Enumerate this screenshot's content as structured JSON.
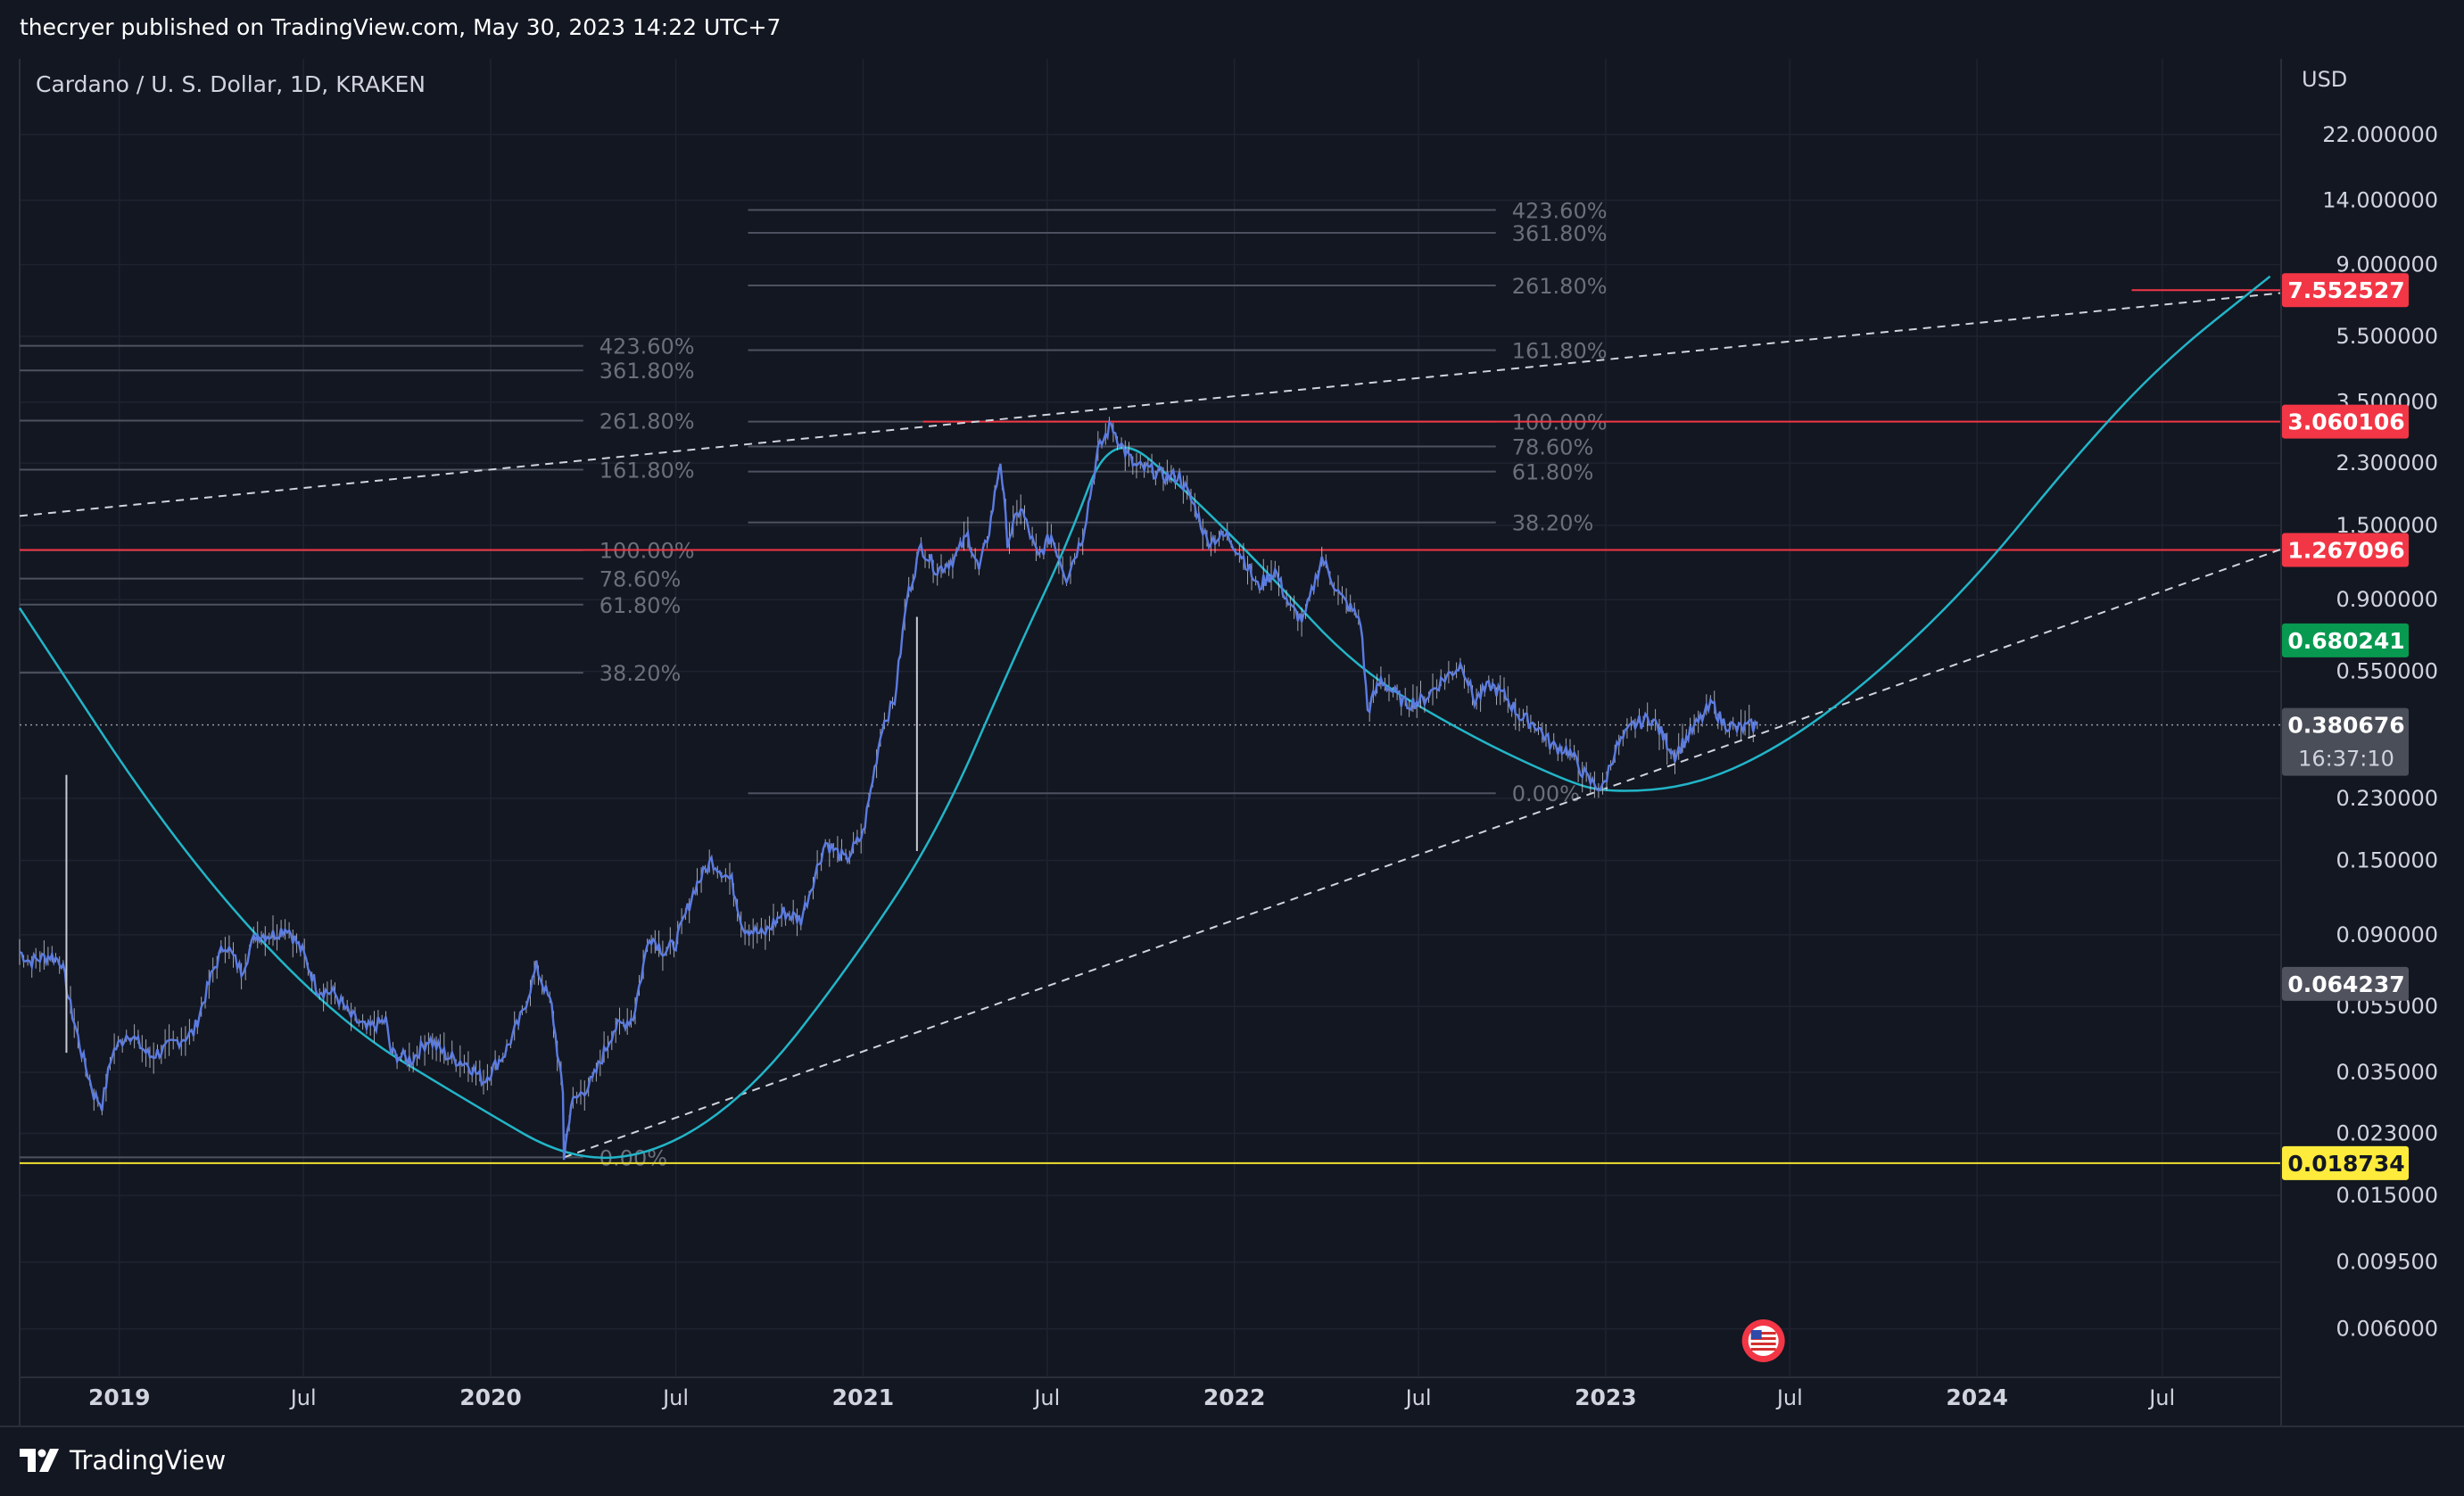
{
  "header": {
    "publisher_line": "thecryer published on TradingView.com, May 30, 2023 14:22 UTC+7"
  },
  "footer": {
    "brand": "TradingView"
  },
  "chart_data": {
    "type": "line",
    "title": "Cardano / U. S. Dollar, 1D, KRAKEN",
    "currency": "USD",
    "scale": "log",
    "ylim": [
      0.0043,
      37.0
    ],
    "y_ticks": [
      22.0,
      14.0,
      9.0,
      5.5,
      3.5,
      2.3,
      1.5,
      0.9,
      0.55,
      0.23,
      0.15,
      0.09,
      0.055,
      0.035,
      0.023,
      0.015,
      0.0095,
      0.006
    ],
    "y_tick_labels": [
      "22.000000",
      "14.000000",
      "9.000000",
      "5.500000",
      "3.500000",
      "2.300000",
      "1.500000",
      "0.900000",
      "0.550000",
      "0.230000",
      "0.150000",
      "0.090000",
      "0.055000",
      "0.035000",
      "0.023000",
      "0.015000",
      "0.009500",
      "0.006000"
    ],
    "x_range": [
      "2018-09-25",
      "2024-10-25"
    ],
    "x_ticks": [
      {
        "date": "2019-01-01",
        "label": "2019",
        "bold": true
      },
      {
        "date": "2019-07-01",
        "label": "Jul",
        "bold": false
      },
      {
        "date": "2020-01-01",
        "label": "2020",
        "bold": true
      },
      {
        "date": "2020-07-01",
        "label": "Jul",
        "bold": false
      },
      {
        "date": "2021-01-01",
        "label": "2021",
        "bold": true
      },
      {
        "date": "2021-07-01",
        "label": "Jul",
        "bold": false
      },
      {
        "date": "2022-01-01",
        "label": "2022",
        "bold": true
      },
      {
        "date": "2022-07-01",
        "label": "Jul",
        "bold": false
      },
      {
        "date": "2023-01-01",
        "label": "2023",
        "bold": true
      },
      {
        "date": "2023-07-01",
        "label": "Jul",
        "bold": false
      },
      {
        "date": "2024-01-01",
        "label": "2024",
        "bold": true
      },
      {
        "date": "2024-07-01",
        "label": "Jul",
        "bold": false
      }
    ],
    "price_series": {
      "name": "ADAUSD",
      "color": "#5b7be0",
      "points": [
        [
          "2018-09-25",
          0.08
        ],
        [
          "2018-10-05",
          0.075
        ],
        [
          "2018-10-25",
          0.078
        ],
        [
          "2018-11-05",
          0.075
        ],
        [
          "2018-11-14",
          0.055
        ],
        [
          "2018-11-25",
          0.04
        ],
        [
          "2018-12-07",
          0.03
        ],
        [
          "2018-12-15",
          0.028
        ],
        [
          "2018-12-25",
          0.04
        ],
        [
          "2019-01-10",
          0.046
        ],
        [
          "2019-01-31",
          0.039
        ],
        [
          "2019-02-15",
          0.041
        ],
        [
          "2019-02-25",
          0.043
        ],
        [
          "2019-03-15",
          0.046
        ],
        [
          "2019-04-03",
          0.07
        ],
        [
          "2019-04-15",
          0.085
        ],
        [
          "2019-05-01",
          0.07
        ],
        [
          "2019-05-15",
          0.09
        ],
        [
          "2019-06-01",
          0.09
        ],
        [
          "2019-06-15",
          0.095
        ],
        [
          "2019-06-30",
          0.08
        ],
        [
          "2019-07-15",
          0.062
        ],
        [
          "2019-08-01",
          0.06
        ],
        [
          "2019-08-15",
          0.052
        ],
        [
          "2019-09-01",
          0.047
        ],
        [
          "2019-09-20",
          0.05
        ],
        [
          "2019-09-25",
          0.04
        ],
        [
          "2019-10-15",
          0.038
        ],
        [
          "2019-11-01",
          0.044
        ],
        [
          "2019-11-20",
          0.039
        ],
        [
          "2019-12-10",
          0.037
        ],
        [
          "2019-12-25",
          0.033
        ],
        [
          "2020-01-15",
          0.04
        ],
        [
          "2020-02-01",
          0.052
        ],
        [
          "2020-02-15",
          0.072
        ],
        [
          "2020-03-01",
          0.055
        ],
        [
          "2020-03-12",
          0.03
        ],
        [
          "2020-03-13",
          0.0195
        ],
        [
          "2020-03-20",
          0.028
        ],
        [
          "2020-04-10",
          0.033
        ],
        [
          "2020-05-01",
          0.047
        ],
        [
          "2020-05-20",
          0.051
        ],
        [
          "2020-06-05",
          0.09
        ],
        [
          "2020-06-20",
          0.08
        ],
        [
          "2020-07-01",
          0.085
        ],
        [
          "2020-07-20",
          0.125
        ],
        [
          "2020-08-05",
          0.15
        ],
        [
          "2020-08-25",
          0.13
        ],
        [
          "2020-09-05",
          0.095
        ],
        [
          "2020-09-25",
          0.09
        ],
        [
          "2020-10-15",
          0.105
        ],
        [
          "2020-11-01",
          0.1
        ],
        [
          "2020-11-25",
          0.17
        ],
        [
          "2020-12-15",
          0.15
        ],
        [
          "2021-01-01",
          0.18
        ],
        [
          "2021-01-20",
          0.38
        ],
        [
          "2021-02-01",
          0.45
        ],
        [
          "2021-02-13",
          0.9
        ],
        [
          "2021-02-27",
          1.3
        ],
        [
          "2021-03-15",
          1.1
        ],
        [
          "2021-04-01",
          1.2
        ],
        [
          "2021-04-14",
          1.4
        ],
        [
          "2021-04-25",
          1.1
        ],
        [
          "2021-05-05",
          1.45
        ],
        [
          "2021-05-16",
          2.35
        ],
        [
          "2021-05-23",
          1.35
        ],
        [
          "2021-06-05",
          1.7
        ],
        [
          "2021-06-22",
          1.2
        ],
        [
          "2021-07-05",
          1.4
        ],
        [
          "2021-07-20",
          1.05
        ],
        [
          "2021-08-05",
          1.4
        ],
        [
          "2021-08-20",
          2.5
        ],
        [
          "2021-09-02",
          3.0
        ],
        [
          "2021-09-12",
          2.6
        ],
        [
          "2021-09-25",
          2.25
        ],
        [
          "2021-10-10",
          2.2
        ],
        [
          "2021-10-25",
          2.1
        ],
        [
          "2021-11-08",
          2.1
        ],
        [
          "2021-11-25",
          1.65
        ],
        [
          "2021-12-05",
          1.35
        ],
        [
          "2021-12-25",
          1.4
        ],
        [
          "2022-01-10",
          1.2
        ],
        [
          "2022-01-24",
          0.98
        ],
        [
          "2022-02-10",
          1.1
        ],
        [
          "2022-02-25",
          0.85
        ],
        [
          "2022-03-10",
          0.78
        ],
        [
          "2022-03-28",
          1.2
        ],
        [
          "2022-04-15",
          0.92
        ],
        [
          "2022-05-05",
          0.78
        ],
        [
          "2022-05-12",
          0.42
        ],
        [
          "2022-05-25",
          0.52
        ],
        [
          "2022-06-18",
          0.44
        ],
        [
          "2022-07-05",
          0.45
        ],
        [
          "2022-07-25",
          0.52
        ],
        [
          "2022-08-13",
          0.58
        ],
        [
          "2022-08-25",
          0.45
        ],
        [
          "2022-09-10",
          0.5
        ],
        [
          "2022-09-25",
          0.46
        ],
        [
          "2022-10-10",
          0.4
        ],
        [
          "2022-10-25",
          0.38
        ],
        [
          "2022-11-09",
          0.33
        ],
        [
          "2022-11-25",
          0.32
        ],
        [
          "2022-12-15",
          0.26
        ],
        [
          "2022-12-29",
          0.245
        ],
        [
          "2023-01-10",
          0.32
        ],
        [
          "2023-01-28",
          0.38
        ],
        [
          "2023-02-15",
          0.4
        ],
        [
          "2023-03-10",
          0.31
        ],
        [
          "2023-03-25",
          0.36
        ],
        [
          "2023-04-16",
          0.44
        ],
        [
          "2023-04-25",
          0.39
        ],
        [
          "2023-05-10",
          0.37
        ],
        [
          "2023-05-30",
          0.38
        ]
      ]
    },
    "ellipse_curve_points": [
      [
        "2018-09-25",
        0.85
      ],
      [
        "2019-03-01",
        0.16
      ],
      [
        "2019-08-01",
        0.05
      ],
      [
        "2019-12-15",
        0.028
      ],
      [
        "2020-03-20",
        0.019
      ],
      [
        "2020-06-15",
        0.02
      ],
      [
        "2020-09-15",
        0.031
      ],
      [
        "2020-12-15",
        0.07
      ],
      [
        "2021-03-15",
        0.18
      ],
      [
        "2021-06-01",
        0.63
      ],
      [
        "2021-07-20",
        1.3
      ],
      [
        "2021-09-02",
        2.95
      ],
      [
        "2021-11-15",
        1.9
      ],
      [
        "2022-02-01",
        1.1
      ],
      [
        "2022-05-01",
        0.56
      ],
      [
        "2022-08-15",
        0.36
      ],
      [
        "2022-11-15",
        0.265
      ],
      [
        "2023-01-01",
        0.238
      ],
      [
        "2023-04-01",
        0.25
      ],
      [
        "2023-07-01",
        0.34
      ],
      [
        "2023-10-01",
        0.56
      ],
      [
        "2024-01-01",
        1.05
      ],
      [
        "2024-04-01",
        2.3
      ],
      [
        "2024-07-01",
        4.6
      ],
      [
        "2024-10-15",
        8.3
      ]
    ],
    "trendlines": [
      {
        "name": "upper dashed trendline",
        "from": [
          "2018-09-25",
          1.6
        ],
        "to": [
          "2024-10-25",
          7.4
        ]
      },
      {
        "name": "lower dashed trendline",
        "from": [
          "2020-03-13",
          0.0195
        ],
        "to": [
          "2024-10-25",
          1.27
        ]
      }
    ],
    "fib_sets": [
      {
        "x_from": "2018-09-25",
        "x_to": "2020-04-01",
        "label_at": "2020-04-01",
        "levels": [
          {
            "label": "423.60%",
            "value": 5.15
          },
          {
            "label": "361.80%",
            "value": 4.35
          },
          {
            "label": "261.80%",
            "value": 3.08
          },
          {
            "label": "161.80%",
            "value": 2.2
          },
          {
            "label": "100.00%",
            "value": 1.265
          },
          {
            "label": "78.60%",
            "value": 1.04
          },
          {
            "label": "61.80%",
            "value": 0.87
          },
          {
            "label": "38.20%",
            "value": 0.545
          },
          {
            "label": "0.00%",
            "value": 0.0195
          }
        ]
      },
      {
        "x_from": "2020-09-10",
        "x_to": "2022-09-15",
        "label_at": "2022-09-15",
        "levels": [
          {
            "label": "423.60%",
            "value": 13.1
          },
          {
            "label": "361.80%",
            "value": 11.2
          },
          {
            "label": "261.80%",
            "value": 7.8
          },
          {
            "label": "161.80%",
            "value": 5.0
          },
          {
            "label": "100.00%",
            "value": 3.06
          },
          {
            "label": "78.60%",
            "value": 2.58
          },
          {
            "label": "61.80%",
            "value": 2.17
          },
          {
            "label": "38.20%",
            "value": 1.53
          },
          {
            "label": "0.00%",
            "value": 0.238
          }
        ]
      }
    ],
    "horizontal_lines": [
      {
        "value": 3.060106,
        "from": "2021-03-01",
        "color": "#f23645"
      },
      {
        "value": 1.267096,
        "from": "2018-09-25",
        "color": "#f23645"
      },
      {
        "value": 0.018734,
        "from": "2018-09-25",
        "color": "#f0e130"
      },
      {
        "value": 7.552527,
        "from": "2024-06-01",
        "color": "#f23645"
      }
    ],
    "current_price_line": 0.380676,
    "price_tags": [
      {
        "label": "7.552527",
        "value": 7.552527,
        "bg": "#f23645",
        "fg": "#ffffff"
      },
      {
        "label": "3.060106",
        "value": 3.060106,
        "bg": "#f23645",
        "fg": "#ffffff"
      },
      {
        "label": "1.267096",
        "value": 1.267096,
        "bg": "#f23645",
        "fg": "#ffffff"
      },
      {
        "label": "0.680241",
        "value": 0.680241,
        "bg": "#089950",
        "fg": "#ffffff"
      },
      {
        "label": "0.380676",
        "value": 0.380676,
        "bg": "#4a4e58",
        "fg": "#ffffff",
        "sub": "16:37:10"
      },
      {
        "label": "0.064237",
        "value": 0.064237,
        "bg": "#50535e",
        "fg": "#ffffff"
      },
      {
        "label": "0.018734",
        "value": 0.018734,
        "bg": "#ffeb3b",
        "fg": "#131722"
      }
    ],
    "event_flag": {
      "date": "2023-06-05",
      "icon": "us-flag-icon"
    },
    "grid": true,
    "legend": "none",
    "colors": {
      "background": "#131722",
      "grid": "#1f2330",
      "curve": "#22b5c8",
      "trendline": "#d1d4dc",
      "fib": "#4d5260"
    }
  }
}
